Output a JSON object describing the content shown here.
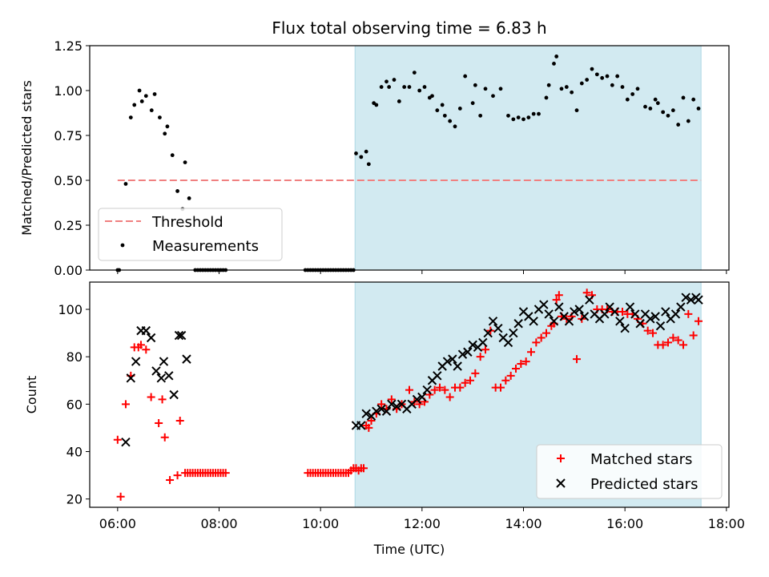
{
  "title": "Flux total observing time = 6.83 h",
  "colors": {
    "shade": "#add8e6",
    "threshold": "#f08080",
    "matched": "#ff0000",
    "predicted": "#000000",
    "points": "#000000"
  },
  "chart_data": [
    {
      "type": "scatter",
      "ylabel": "Matched/Predicted stars",
      "xlim_hours": [
        5.45,
        18.05
      ],
      "ylim": [
        0,
        1.25
      ],
      "yticks": [
        "0.00",
        "0.25",
        "0.50",
        "0.75",
        "1.00",
        "1.25"
      ],
      "shaded_interval_hours": [
        10.68,
        17.5
      ],
      "legend_position": "lower-left",
      "legend": {
        "threshold": "Threshold",
        "measurements": "Measurements"
      },
      "threshold": {
        "name": "Threshold",
        "y": 0.5,
        "x_hours": [
          6.0,
          17.5
        ]
      },
      "measurements": {
        "name": "Measurements",
        "t_hours": [
          6.0,
          6.03,
          6.16,
          6.26,
          6.33,
          6.43,
          6.48,
          6.56,
          6.67,
          6.73,
          6.83,
          6.93,
          6.98,
          7.08,
          7.18,
          7.28,
          7.33,
          7.41,
          7.53,
          7.58,
          7.63,
          7.68,
          7.73,
          7.78,
          7.83,
          7.88,
          7.93,
          7.98,
          8.03,
          8.08,
          8.13,
          9.7,
          9.75,
          9.8,
          9.85,
          9.9,
          9.95,
          10.0,
          10.05,
          10.1,
          10.15,
          10.2,
          10.25,
          10.3,
          10.35,
          10.4,
          10.45,
          10.5,
          10.55,
          10.6,
          10.65,
          10.7,
          10.8,
          10.9,
          10.95,
          11.05,
          11.1,
          11.2,
          11.3,
          11.35,
          11.45,
          11.55,
          11.65,
          11.75,
          11.85,
          11.95,
          12.05,
          12.15,
          12.2,
          12.3,
          12.4,
          12.45,
          12.55,
          12.65,
          12.75,
          12.85,
          13.0,
          13.05,
          13.15,
          13.25,
          13.4,
          13.55,
          13.7,
          13.8,
          13.9,
          14.0,
          14.1,
          14.2,
          14.3,
          14.45,
          14.5,
          14.6,
          14.65,
          14.75,
          14.85,
          14.95,
          15.05,
          15.15,
          15.25,
          15.35,
          15.45,
          15.55,
          15.65,
          15.75,
          15.85,
          15.95,
          16.05,
          16.15,
          16.25,
          16.4,
          16.5,
          16.6,
          16.65,
          16.75,
          16.85,
          16.95,
          17.05,
          17.15,
          17.25,
          17.35,
          17.45
        ],
        "y": [
          0.0,
          0.0,
          0.48,
          0.85,
          0.92,
          1.0,
          0.94,
          0.97,
          0.89,
          0.98,
          0.85,
          0.76,
          0.8,
          0.64,
          0.44,
          0.34,
          0.6,
          0.4,
          0.0,
          0.0,
          0.0,
          0.0,
          0.0,
          0.0,
          0.0,
          0.0,
          0.0,
          0.0,
          0.0,
          0.0,
          0.0,
          0.0,
          0.0,
          0.0,
          0.0,
          0.0,
          0.0,
          0.0,
          0.0,
          0.0,
          0.0,
          0.0,
          0.0,
          0.0,
          0.0,
          0.0,
          0.0,
          0.0,
          0.0,
          0.0,
          0.0,
          0.65,
          0.63,
          0.66,
          0.59,
          0.93,
          0.92,
          1.02,
          1.05,
          1.02,
          1.06,
          0.94,
          1.02,
          1.02,
          1.1,
          1.0,
          1.02,
          0.96,
          0.97,
          0.89,
          0.92,
          0.86,
          0.83,
          0.8,
          0.9,
          1.08,
          0.93,
          1.03,
          0.86,
          1.01,
          0.97,
          1.01,
          0.86,
          0.84,
          0.85,
          0.84,
          0.85,
          0.87,
          0.87,
          0.96,
          1.03,
          1.15,
          1.19,
          1.01,
          1.02,
          0.99,
          0.89,
          1.04,
          1.06,
          1.12,
          1.09,
          1.07,
          1.08,
          1.03,
          1.08,
          1.02,
          0.95,
          0.98,
          1.01,
          0.91,
          0.9,
          0.95,
          0.93,
          0.88,
          0.86,
          0.89,
          0.81,
          0.96,
          0.83,
          0.95,
          0.9,
          0.88
        ]
      }
    },
    {
      "type": "scatter",
      "ylabel": "Count",
      "xlabel": "Time (UTC)",
      "xlim_hours": [
        5.45,
        18.05
      ],
      "ylim": [
        16.5,
        111.5
      ],
      "yticks": [
        "20",
        "40",
        "60",
        "80",
        "100"
      ],
      "xticks": [
        "06:00",
        "08:00",
        "10:00",
        "12:00",
        "14:00",
        "16:00",
        "18:00"
      ],
      "shaded_interval_hours": [
        10.68,
        17.5
      ],
      "legend_position": "lower-right",
      "legend": {
        "matched": "Matched stars",
        "predicted": "Predicted stars"
      },
      "series": [
        {
          "name": "Matched stars",
          "marker": "+",
          "t_hours": [
            6.0,
            6.06,
            6.16,
            6.26,
            6.33,
            6.41,
            6.46,
            6.56,
            6.66,
            6.81,
            6.88,
            6.93,
            7.03,
            7.18,
            7.23,
            7.33,
            7.38,
            7.43,
            7.48,
            7.53,
            7.58,
            7.63,
            7.68,
            7.73,
            7.78,
            7.83,
            7.88,
            7.93,
            7.98,
            8.03,
            8.08,
            8.13,
            9.75,
            9.8,
            9.85,
            9.9,
            9.95,
            10.0,
            10.05,
            10.1,
            10.15,
            10.2,
            10.25,
            10.3,
            10.35,
            10.4,
            10.45,
            10.5,
            10.55,
            10.6,
            10.65,
            10.7,
            10.75,
            10.8,
            10.85,
            10.9,
            10.95,
            11.0,
            11.1,
            11.2,
            11.3,
            11.4,
            11.5,
            11.6,
            11.75,
            11.85,
            11.95,
            12.05,
            12.15,
            12.25,
            12.35,
            12.45,
            12.55,
            12.65,
            12.75,
            12.85,
            12.95,
            13.05,
            13.15,
            13.25,
            13.35,
            13.45,
            13.55,
            13.65,
            13.75,
            13.85,
            13.95,
            14.05,
            14.15,
            14.25,
            14.35,
            14.45,
            14.55,
            14.6,
            14.65,
            14.7,
            14.75,
            14.85,
            14.95,
            15.05,
            15.15,
            15.25,
            15.35,
            15.45,
            15.55,
            15.65,
            15.75,
            15.85,
            15.95,
            16.05,
            16.15,
            16.25,
            16.35,
            16.45,
            16.55,
            16.65,
            16.75,
            16.85,
            16.95,
            17.05,
            17.15,
            17.25,
            17.35,
            17.45
          ],
          "y": [
            45,
            21,
            60,
            72,
            84,
            84,
            85,
            83,
            63,
            52,
            62,
            46,
            28,
            30,
            53,
            31,
            31,
            31,
            31,
            31,
            31,
            31,
            31,
            31,
            31,
            31,
            31,
            31,
            31,
            31,
            31,
            31,
            31,
            31,
            31,
            31,
            31,
            31,
            31,
            31,
            31,
            31,
            31,
            31,
            31,
            31,
            31,
            31,
            31,
            32,
            33,
            33,
            32,
            33,
            33,
            51,
            50,
            53,
            56,
            60,
            58,
            62,
            58,
            60,
            66,
            61,
            60,
            61,
            64,
            66,
            67,
            66,
            63,
            67,
            67,
            69,
            70,
            73,
            80,
            83,
            91,
            67,
            67,
            70,
            72,
            75,
            77,
            78,
            82,
            86,
            88,
            90,
            93,
            94,
            104,
            106,
            97,
            96,
            97,
            79,
            96,
            107,
            106,
            100,
            100,
            100,
            99,
            99,
            99,
            98,
            98,
            96,
            94,
            91,
            90,
            85,
            85,
            86,
            88,
            87,
            85,
            98,
            89,
            95
          ]
        },
        {
          "name": "Predicted stars",
          "marker": "x",
          "t_hours": [
            6.16,
            6.26,
            6.36,
            6.46,
            6.56,
            6.66,
            6.76,
            6.86,
            6.91,
            7.01,
            7.11,
            7.21,
            7.26,
            7.36,
            10.7,
            10.8,
            10.9,
            11.0,
            11.1,
            11.2,
            11.3,
            11.4,
            11.5,
            11.6,
            11.7,
            11.8,
            11.9,
            12.0,
            12.1,
            12.2,
            12.3,
            12.4,
            12.5,
            12.6,
            12.7,
            12.8,
            12.9,
            13.0,
            13.1,
            13.2,
            13.3,
            13.4,
            13.5,
            13.6,
            13.7,
            13.8,
            13.9,
            14.0,
            14.1,
            14.2,
            14.3,
            14.4,
            14.5,
            14.6,
            14.7,
            14.8,
            14.9,
            15.0,
            15.1,
            15.2,
            15.3,
            15.4,
            15.5,
            15.6,
            15.7,
            15.8,
            15.9,
            16.0,
            16.1,
            16.2,
            16.3,
            16.4,
            16.5,
            16.6,
            16.7,
            16.8,
            16.9,
            17.0,
            17.1,
            17.2,
            17.3,
            17.4,
            17.45
          ],
          "y": [
            44,
            71,
            78,
            91,
            91,
            88,
            74,
            71,
            78,
            72,
            64,
            89,
            89,
            79,
            51,
            51,
            56,
            55,
            57,
            58,
            57,
            60,
            59,
            60,
            58,
            60,
            62,
            63,
            66,
            70,
            72,
            76,
            78,
            79,
            76,
            81,
            82,
            85,
            84,
            86,
            90,
            95,
            92,
            88,
            86,
            90,
            94,
            99,
            97,
            95,
            100,
            102,
            98,
            95,
            101,
            97,
            95,
            99,
            100,
            97,
            104,
            98,
            96,
            98,
            101,
            99,
            95,
            92,
            101,
            98,
            94,
            98,
            96,
            97,
            93,
            99,
            96,
            98,
            101,
            105,
            104,
            105,
            104
          ]
        }
      ]
    }
  ]
}
